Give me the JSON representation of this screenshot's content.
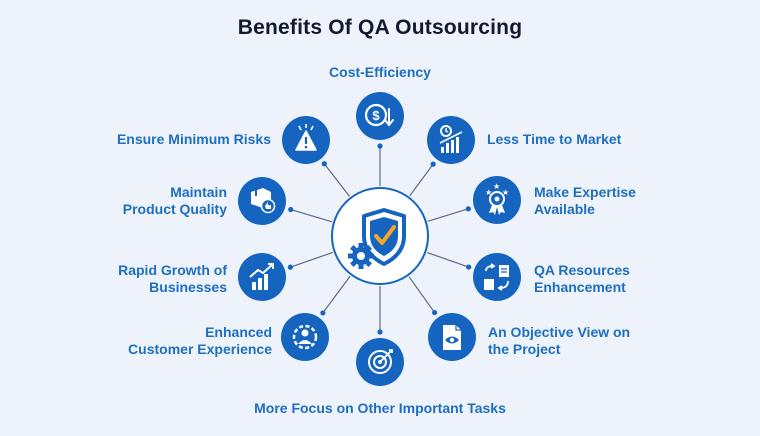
{
  "title": "Benefits Of QA Outsourcing",
  "colors": {
    "primary": "#1565c0",
    "label": "#1e6fc0",
    "accent": "#f5a623",
    "background": "#eef2fb",
    "line": "#5b6b84"
  },
  "center": {
    "icon": "shield-check-gear-icon"
  },
  "benefits": [
    {
      "label": "Cost-Efficiency",
      "icon": "dollar-refund-icon"
    },
    {
      "label": "Less Time to Market",
      "icon": "clock-growth-chart-icon"
    },
    {
      "label": "Make Expertise\nAvailable",
      "icon": "award-badge-icon"
    },
    {
      "label": "QA Resources\nEnhancement",
      "icon": "resource-exchange-icon"
    },
    {
      "label": "An Objective View on\nthe Project",
      "icon": "document-eye-icon"
    },
    {
      "label": "More Focus on Other Important Tasks",
      "icon": "target-icon"
    },
    {
      "label": "Enhanced\nCustomer Experience",
      "icon": "customer-gear-icon"
    },
    {
      "label": "Rapid Growth of\nBusinesses",
      "icon": "growth-chart-icon"
    },
    {
      "label": "Maintain\nProduct Quality",
      "icon": "box-thumbs-up-icon"
    },
    {
      "label": "Ensure Minimum Risks",
      "icon": "warning-risk-icon"
    }
  ]
}
